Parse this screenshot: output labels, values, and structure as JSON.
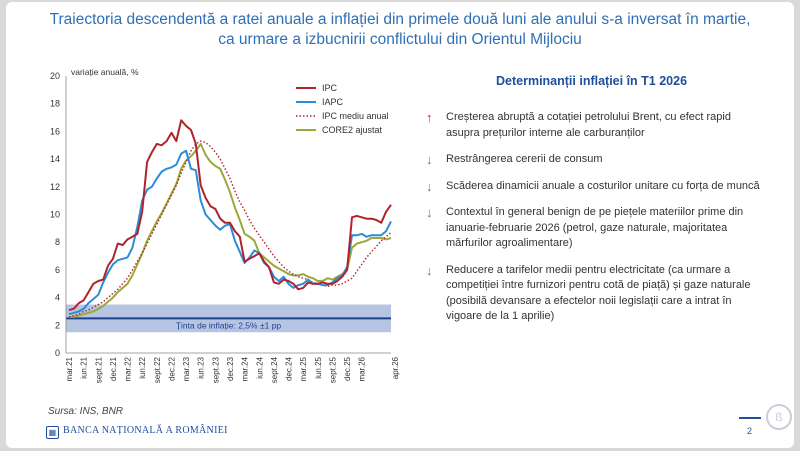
{
  "title": {
    "line1": "Traiectoria descendentă a ratei anuale a inflației din primele două luni ale anului s-a inversat în martie,",
    "line2": "ca urmare a izbucnirii conflictului din Orientul Mijlociu"
  },
  "chart_data": {
    "type": "line",
    "ylabel": "variație anuală, %",
    "ylim": [
      0,
      20
    ],
    "yticks": [
      0,
      2,
      4,
      6,
      8,
      10,
      12,
      14,
      16,
      18,
      20
    ],
    "x_start": "mar.21",
    "x_tick_labels": [
      "mar.21",
      "iun.21",
      "sept.21",
      "dec.21",
      "mar.22",
      "iun.22",
      "sept.22",
      "dec.22",
      "mar.23",
      "iun.23",
      "sept.23",
      "dec.23",
      "mar.24",
      "iun.24",
      "sept.24",
      "dec.24",
      "mar.25",
      "iun.25",
      "sept.25",
      "dec.25",
      "mar.26",
      "apr.26"
    ],
    "target_band": {
      "low": 1.5,
      "high": 3.5,
      "center": 2.5,
      "label": "Ținta de inflație: 2,5% ±1 pp"
    },
    "legend_position": "top-right",
    "series": [
      {
        "name": "IPC",
        "color": "#b0232a",
        "style": "solid",
        "values": [
          3.1,
          3.2,
          3.6,
          3.8,
          4.4,
          5.0,
          5.2,
          5.3,
          6.3,
          6.8,
          7.9,
          7.8,
          8.2,
          8.4,
          8.6,
          10.2,
          13.8,
          14.5,
          15.1,
          15.0,
          15.3,
          15.9,
          15.3,
          16.8,
          16.4,
          16.1,
          15.1,
          12.1,
          11.2,
          10.6,
          10.4,
          9.7,
          9.4,
          9.4,
          8.8,
          8.4,
          6.6,
          6.8,
          7.0,
          7.2,
          6.6,
          6.2,
          5.1,
          5.0,
          5.3,
          5.2,
          5.0,
          4.6,
          4.7,
          5.1,
          5.0,
          5.0,
          5.1,
          5.0,
          5.0,
          5.2,
          5.5,
          6.0,
          9.8,
          9.9,
          9.8,
          9.7,
          9.7,
          9.6,
          9.4,
          10.2,
          10.7
        ]
      },
      {
        "name": "IAPC",
        "color": "#2b8cd8",
        "style": "solid",
        "values": [
          2.8,
          2.9,
          3.0,
          3.2,
          3.6,
          3.9,
          4.2,
          5.1,
          5.8,
          6.4,
          6.7,
          6.8,
          6.9,
          7.6,
          9.1,
          11.0,
          11.8,
          12.0,
          12.6,
          13.1,
          13.3,
          13.4,
          13.6,
          14.4,
          14.6,
          13.3,
          13.2,
          11.0,
          10.0,
          9.6,
          9.2,
          8.9,
          9.2,
          9.3,
          8.1,
          7.3,
          6.5,
          6.9,
          7.4,
          7.2,
          6.5,
          6.2,
          5.5,
          5.2,
          5.5,
          5.0,
          4.7,
          4.9,
          5.0,
          5.3,
          5.0,
          5.0,
          4.9,
          4.9,
          5.1,
          5.4,
          5.6,
          6.2,
          8.5,
          8.5,
          8.6,
          8.4,
          8.5,
          8.5,
          8.5,
          8.8,
          9.5
        ]
      },
      {
        "name": "IPC mediu anual",
        "color": "#b0232a",
        "style": "dotted",
        "values": [
          2.6,
          2.7,
          2.8,
          3.0,
          3.1,
          3.3,
          3.5,
          3.7,
          4.0,
          4.3,
          4.6,
          5.0,
          5.4,
          6.0,
          6.6,
          7.2,
          7.9,
          8.6,
          9.3,
          10.0,
          10.7,
          11.4,
          12.1,
          13.0,
          13.8,
          14.6,
          15.1,
          15.3,
          15.2,
          14.9,
          14.5,
          14.0,
          13.3,
          12.6,
          11.7,
          10.9,
          10.3,
          9.6,
          9.0,
          8.5,
          8.0,
          7.5,
          7.0,
          6.6,
          6.2,
          5.9,
          5.7,
          5.5,
          5.4,
          5.3,
          5.1,
          5.0,
          4.9,
          4.8,
          4.9,
          4.9,
          5.0,
          5.2,
          5.4,
          5.9,
          6.4,
          6.9,
          7.3,
          7.7,
          8.1,
          8.4,
          8.7
        ]
      },
      {
        "name": "CORE2 ajustat",
        "color": "#9aa83a",
        "style": "solid",
        "values": [
          2.6,
          2.6,
          2.7,
          2.8,
          2.9,
          3.0,
          3.2,
          3.4,
          3.7,
          4.0,
          4.4,
          4.7,
          5.0,
          5.6,
          6.4,
          7.2,
          8.1,
          8.8,
          9.5,
          10.1,
          10.8,
          11.5,
          12.2,
          13.3,
          13.9,
          14.2,
          14.6,
          15.1,
          14.3,
          13.8,
          13.5,
          13.3,
          12.5,
          11.6,
          10.5,
          9.6,
          8.6,
          8.4,
          8.1,
          7.2,
          6.9,
          6.6,
          6.3,
          6.1,
          5.9,
          5.7,
          5.6,
          5.6,
          5.7,
          5.5,
          5.4,
          5.2,
          5.2,
          5.4,
          5.3,
          5.5,
          5.7,
          6.0,
          7.6,
          7.9,
          8.0,
          8.1,
          8.3,
          8.3,
          8.3,
          8.2,
          8.3
        ]
      }
    ]
  },
  "determinants": {
    "title": "Determinanții inflației în T1 2026",
    "items": [
      {
        "direction": "up",
        "icon": "arrow-up-icon",
        "color": "#d9201f",
        "text": "Creșterea abruptă a cotației petrolului Brent, cu efect rapid asupra prețurilor interne ale carburanților"
      },
      {
        "direction": "down",
        "icon": "arrow-down-icon",
        "color": "#2ea043",
        "text": "Restrângerea cererii de consum"
      },
      {
        "direction": "down",
        "icon": "arrow-down-icon",
        "color": "#2ea043",
        "text": "Scăderea dinamicii anuale a costurilor unitare cu forța de muncă"
      },
      {
        "direction": "down",
        "icon": "arrow-down-icon",
        "color": "#2ea043",
        "text": "Contextul în general benign de pe piețele materiilor prime din ianuarie-februarie 2026 (petrol, gaze naturale, majoritatea mărfurilor agroalimentare)"
      },
      {
        "direction": "down",
        "icon": "arrow-down-icon",
        "color": "#2ea043",
        "text": "Reducere a tarifelor medii pentru electricitate (ca urmare a competiției între furnizori pentru cotă de piață) și gaze naturale (posibilă devansare a efectelor noii legislații care a intrat în vigoare de la 1 aprilie)"
      }
    ]
  },
  "source": "Sursa: INS, BNR",
  "footer": {
    "institution": "BANCA NAȚIONALĂ A ROMÂNIEI",
    "page": "2"
  }
}
